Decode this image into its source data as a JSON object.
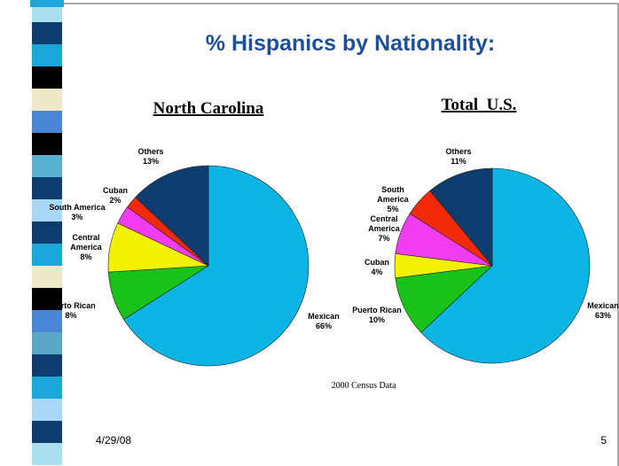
{
  "slide": {
    "title": "% Hispanics by Nationality:",
    "source": "2000 Census Data",
    "date": "4/29/08",
    "page": "5"
  },
  "chart_data": [
    {
      "type": "pie",
      "title": "North Carolina",
      "categories": [
        "Mexican",
        "Puerto Rican",
        "Central America",
        "South America",
        "Cuban",
        "Others"
      ],
      "values": [
        66,
        8,
        8,
        3,
        2,
        13
      ],
      "value_labels": [
        "66%",
        "8%",
        "8%",
        "3%",
        "2%",
        "13%"
      ],
      "colors": [
        "#0ab4e4",
        "#16c316",
        "#f2f200",
        "#f23cf2",
        "#f22a0a",
        "#0d3d6e"
      ]
    },
    {
      "type": "pie",
      "title": "Total  U.S.",
      "categories": [
        "Mexican",
        "Puerto Rican",
        "Cuban",
        "Central America",
        "South America",
        "Others"
      ],
      "values": [
        63,
        10,
        4,
        7,
        5,
        11
      ],
      "value_labels": [
        "63%",
        "10%",
        "4%",
        "7%",
        "5%",
        "11%"
      ],
      "colors": [
        "#0ab4e4",
        "#16c316",
        "#f2f200",
        "#f23cf2",
        "#f22a0a",
        "#0d3d6e"
      ]
    }
  ]
}
